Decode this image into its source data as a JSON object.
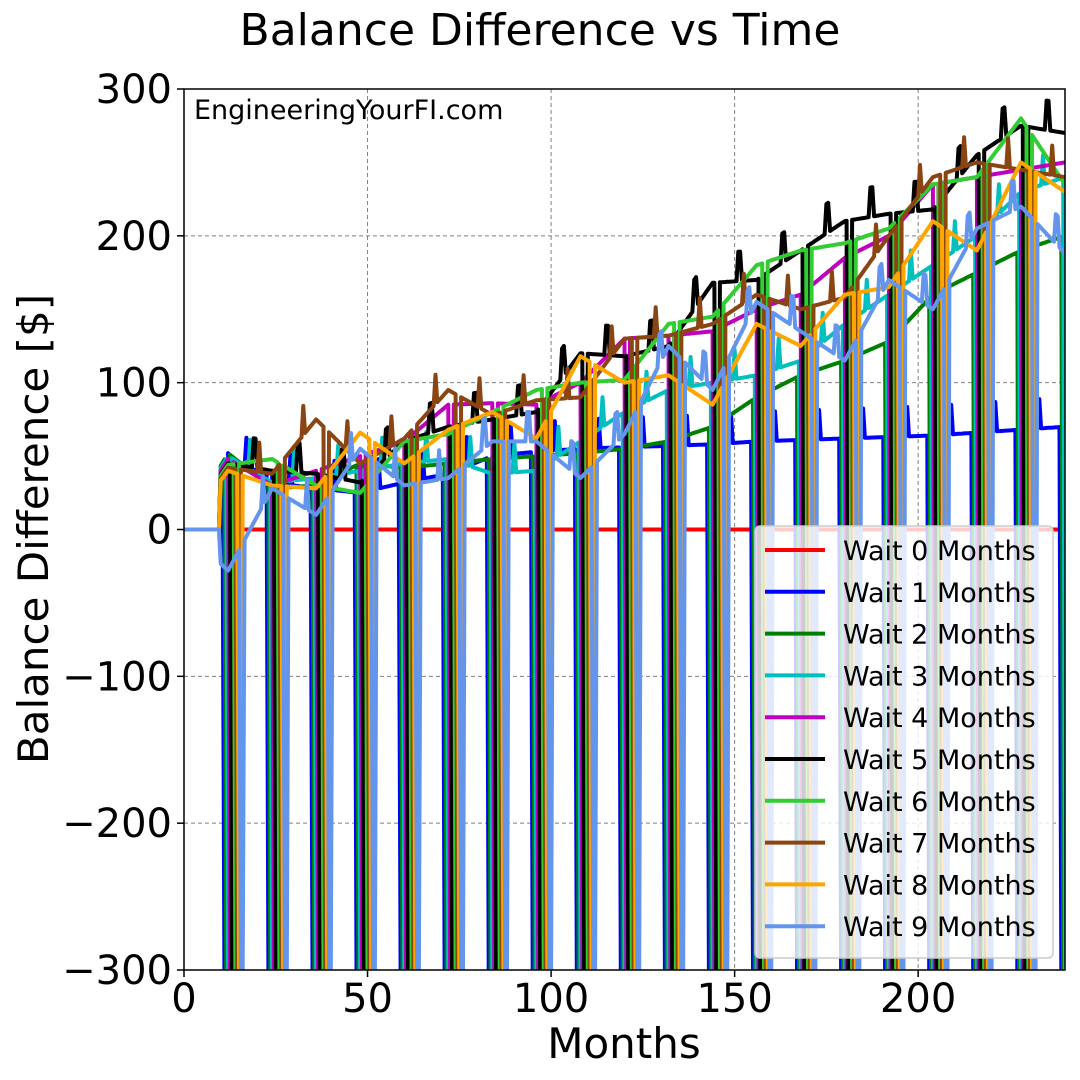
{
  "chart_data": {
    "type": "line",
    "title": "Balance Difference vs Time",
    "xlabel": "Months",
    "ylabel": "Balance Difference [$]",
    "watermark": "EngineeringYourFI.com",
    "xlim": [
      0,
      240
    ],
    "ylim": [
      -300,
      300
    ],
    "xticks": [
      0,
      50,
      100,
      150,
      200
    ],
    "xtick_labels": [
      "0",
      "50",
      "100",
      "150",
      "200"
    ],
    "yticks": [
      300,
      200,
      100,
      0,
      -100,
      -200,
      -300
    ],
    "ytick_labels": [
      "300",
      "200",
      "100",
      "0",
      "−100",
      "−200",
      "−300"
    ],
    "grid": true,
    "legend_position": "lower-right",
    "series": [
      {
        "name": "Wait 0 Months",
        "color": "#ff0000",
        "wait": 0,
        "x": [
          0,
          240
        ],
        "y": [
          0,
          0
        ]
      },
      {
        "name": "Wait 1 Months",
        "color": "#0000ff",
        "wait": 1,
        "x": [
          0,
          10,
          11,
          12,
          14,
          20,
          24,
          30,
          36,
          48,
          60,
          72,
          84,
          96,
          108,
          120,
          132,
          144,
          156,
          168,
          180,
          192,
          204,
          216,
          228,
          240
        ],
        "y": [
          0,
          0,
          54,
          52,
          45,
          40,
          36,
          30,
          28,
          25,
          32,
          38,
          50,
          53,
          55,
          56,
          57,
          58,
          60,
          61,
          62,
          63,
          64,
          66,
          68,
          70
        ]
      },
      {
        "name": "Wait 2 Months",
        "color": "#008000",
        "wait": 2,
        "x": [
          0,
          12,
          24,
          36,
          48,
          60,
          72,
          84,
          96,
          108,
          120,
          132,
          144,
          156,
          168,
          180,
          192,
          204,
          216,
          228,
          240
        ],
        "y": [
          0,
          52,
          28,
          30,
          45,
          42,
          45,
          48,
          50,
          52,
          55,
          60,
          70,
          90,
          105,
          115,
          128,
          160,
          175,
          190,
          200
        ]
      },
      {
        "name": "Wait 3 Months",
        "color": "#00bfbf",
        "wait": 3,
        "x": [
          0,
          12,
          24,
          36,
          48,
          60,
          72,
          84,
          96,
          108,
          120,
          132,
          144,
          156,
          168,
          180,
          192,
          204,
          216,
          228,
          240
        ],
        "y": [
          0,
          50,
          32,
          35,
          40,
          45,
          48,
          38,
          40,
          60,
          80,
          95,
          100,
          105,
          115,
          140,
          160,
          180,
          200,
          230,
          240
        ]
      },
      {
        "name": "Wait 4 Months",
        "color": "#bf00bf",
        "wait": 4,
        "x": [
          0,
          12,
          24,
          36,
          48,
          60,
          72,
          84,
          96,
          108,
          120,
          132,
          144,
          156,
          168,
          180,
          192,
          204,
          216,
          228,
          240
        ],
        "y": [
          0,
          48,
          30,
          40,
          50,
          60,
          85,
          86,
          85,
          100,
          130,
          132,
          135,
          150,
          160,
          185,
          200,
          235,
          240,
          245,
          250
        ]
      },
      {
        "name": "Wait 5 Months",
        "color": "#000000",
        "wait": 5,
        "x": [
          0,
          12,
          24,
          36,
          48,
          60,
          72,
          84,
          96,
          108,
          120,
          132,
          144,
          156,
          168,
          180,
          192,
          204,
          216,
          228,
          240
        ],
        "y": [
          0,
          45,
          40,
          38,
          32,
          60,
          70,
          75,
          80,
          120,
          118,
          125,
          168,
          170,
          190,
          210,
          215,
          218,
          255,
          275,
          270
        ]
      },
      {
        "name": "Wait 6 Months",
        "color": "#32cd32",
        "wait": 6,
        "x": [
          0,
          12,
          24,
          36,
          48,
          60,
          72,
          84,
          96,
          108,
          120,
          132,
          144,
          156,
          168,
          180,
          192,
          204,
          216,
          228,
          240
        ],
        "y": [
          0,
          44,
          48,
          30,
          25,
          60,
          65,
          80,
          95,
          100,
          102,
          140,
          145,
          180,
          190,
          195,
          205,
          235,
          240,
          280,
          235
        ]
      },
      {
        "name": "Wait 7 Months",
        "color": "#8b4513",
        "wait": 7,
        "x": [
          0,
          12,
          24,
          36,
          48,
          60,
          72,
          84,
          96,
          108,
          120,
          132,
          144,
          156,
          168,
          180,
          192,
          204,
          216,
          228,
          240
        ],
        "y": [
          0,
          42,
          38,
          75,
          45,
          62,
          95,
          78,
          88,
          90,
          130,
          132,
          140,
          160,
          150,
          158,
          200,
          240,
          250,
          245,
          240
        ]
      },
      {
        "name": "Wait 8 Months",
        "color": "#ffa500",
        "wait": 8,
        "x": [
          0,
          12,
          24,
          36,
          48,
          60,
          72,
          84,
          96,
          108,
          120,
          132,
          144,
          156,
          168,
          180,
          192,
          204,
          216,
          228,
          240
        ],
        "y": [
          0,
          40,
          30,
          28,
          66,
          45,
          68,
          80,
          62,
          118,
          100,
          105,
          85,
          140,
          125,
          160,
          165,
          210,
          190,
          250,
          230
        ]
      },
      {
        "name": "Wait 9 Months",
        "color": "#6495ed",
        "wait": 9,
        "x": [
          0,
          12,
          24,
          36,
          48,
          60,
          72,
          84,
          96,
          108,
          120,
          132,
          144,
          156,
          168,
          180,
          192,
          204,
          216,
          228,
          240
        ],
        "y": [
          0,
          -28,
          28,
          10,
          55,
          30,
          35,
          60,
          60,
          35,
          65,
          125,
          95,
          155,
          135,
          115,
          170,
          150,
          205,
          220,
          188
        ]
      }
    ]
  }
}
